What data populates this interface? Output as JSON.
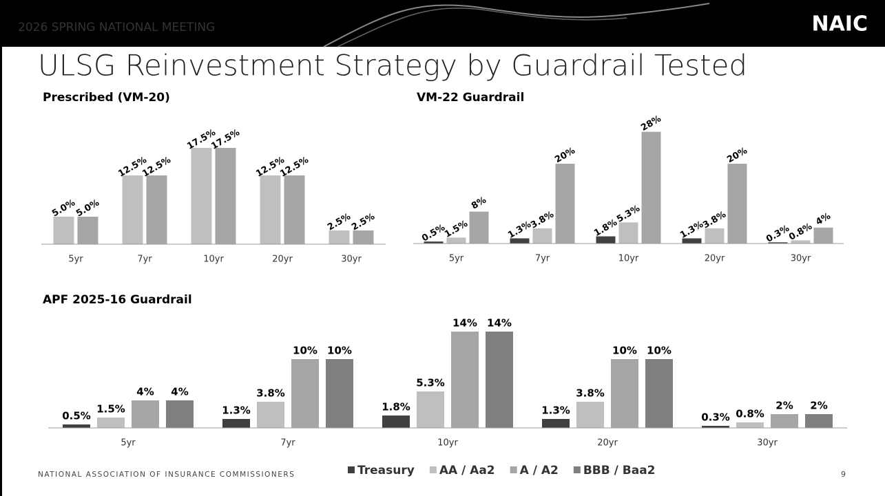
{
  "header": {
    "meeting": "2026 SPRING NATIONAL MEETING",
    "logo": "NAIC"
  },
  "title": "ULSG Reinvestment Strategy by Guardrail Tested",
  "footer": {
    "organization": "NATIONAL ASSOCIATION OF INSURANCE COMMISSIONERS",
    "page": "9"
  },
  "chart_data": [
    {
      "type": "bar",
      "title": "Prescribed (VM-20)",
      "categories": [
        "5yr",
        "7yr",
        "10yr",
        "20yr",
        "30yr"
      ],
      "ylim": [
        0,
        20
      ],
      "series": [
        {
          "color": "#bfbfbf",
          "values": [
            5,
            12.5,
            17.5,
            12.5,
            2.5
          ],
          "value_labels": [
            "5.0%",
            "12.5%",
            "17.5%",
            "12.5%",
            "2.5%"
          ]
        },
        {
          "color": "#a6a6a6",
          "values": [
            5,
            12.5,
            17.5,
            12.5,
            2.5
          ],
          "value_labels": [
            "5.0%",
            "12.5%",
            "17.5%",
            "12.5%",
            "2.5%"
          ]
        }
      ]
    },
    {
      "type": "bar",
      "title": "VM-22 Guardrail",
      "categories": [
        "5yr",
        "7yr",
        "10yr",
        "20yr",
        "30yr"
      ],
      "ylim": [
        0,
        30
      ],
      "series": [
        {
          "color": "#404040",
          "values": [
            0.5,
            1.3,
            1.8,
            1.3,
            0.3
          ],
          "value_labels": [
            "0.5%",
            "1.3%",
            "1.8%",
            "1.3%",
            "0.3%"
          ]
        },
        {
          "color": "#bfbfbf",
          "values": [
            1.5,
            3.8,
            5.3,
            3.8,
            0.8
          ],
          "value_labels": [
            "1.5%",
            "3.8%",
            "5.3%",
            "3.8%",
            "0.8%"
          ]
        },
        {
          "color": "#a6a6a6",
          "values": [
            8,
            20,
            28,
            20,
            4
          ],
          "value_labels": [
            "8%",
            "20%",
            "28%",
            "20%",
            "4%"
          ]
        }
      ]
    },
    {
      "type": "bar",
      "title": "APF 2025-16 Guardrail",
      "categories": [
        "5yr",
        "7yr",
        "10yr",
        "20yr",
        "30yr"
      ],
      "ylim": [
        0,
        15
      ],
      "series": [
        {
          "name": "Treasury",
          "color": "#404040",
          "values": [
            0.5,
            1.3,
            1.8,
            1.3,
            0.3
          ],
          "value_labels": [
            "0.5%",
            "1.3%",
            "1.8%",
            "1.3%",
            "0.3%"
          ]
        },
        {
          "name": "AA / Aa2",
          "color": "#bfbfbf",
          "values": [
            1.5,
            3.8,
            5.3,
            3.8,
            0.8
          ],
          "value_labels": [
            "1.5%",
            "3.8%",
            "5.3%",
            "3.8%",
            "0.8%"
          ]
        },
        {
          "name": "A / A2",
          "color": "#a6a6a6",
          "values": [
            4,
            10,
            14,
            10,
            2
          ],
          "value_labels": [
            "4%",
            "10%",
            "14%",
            "10%",
            "2%"
          ]
        },
        {
          "name": "BBB / Baa2",
          "color": "#7f7f7f",
          "values": [
            4,
            10,
            14,
            10,
            2
          ],
          "value_labels": [
            "4%",
            "10%",
            "14%",
            "10%",
            "2%"
          ]
        }
      ]
    }
  ]
}
